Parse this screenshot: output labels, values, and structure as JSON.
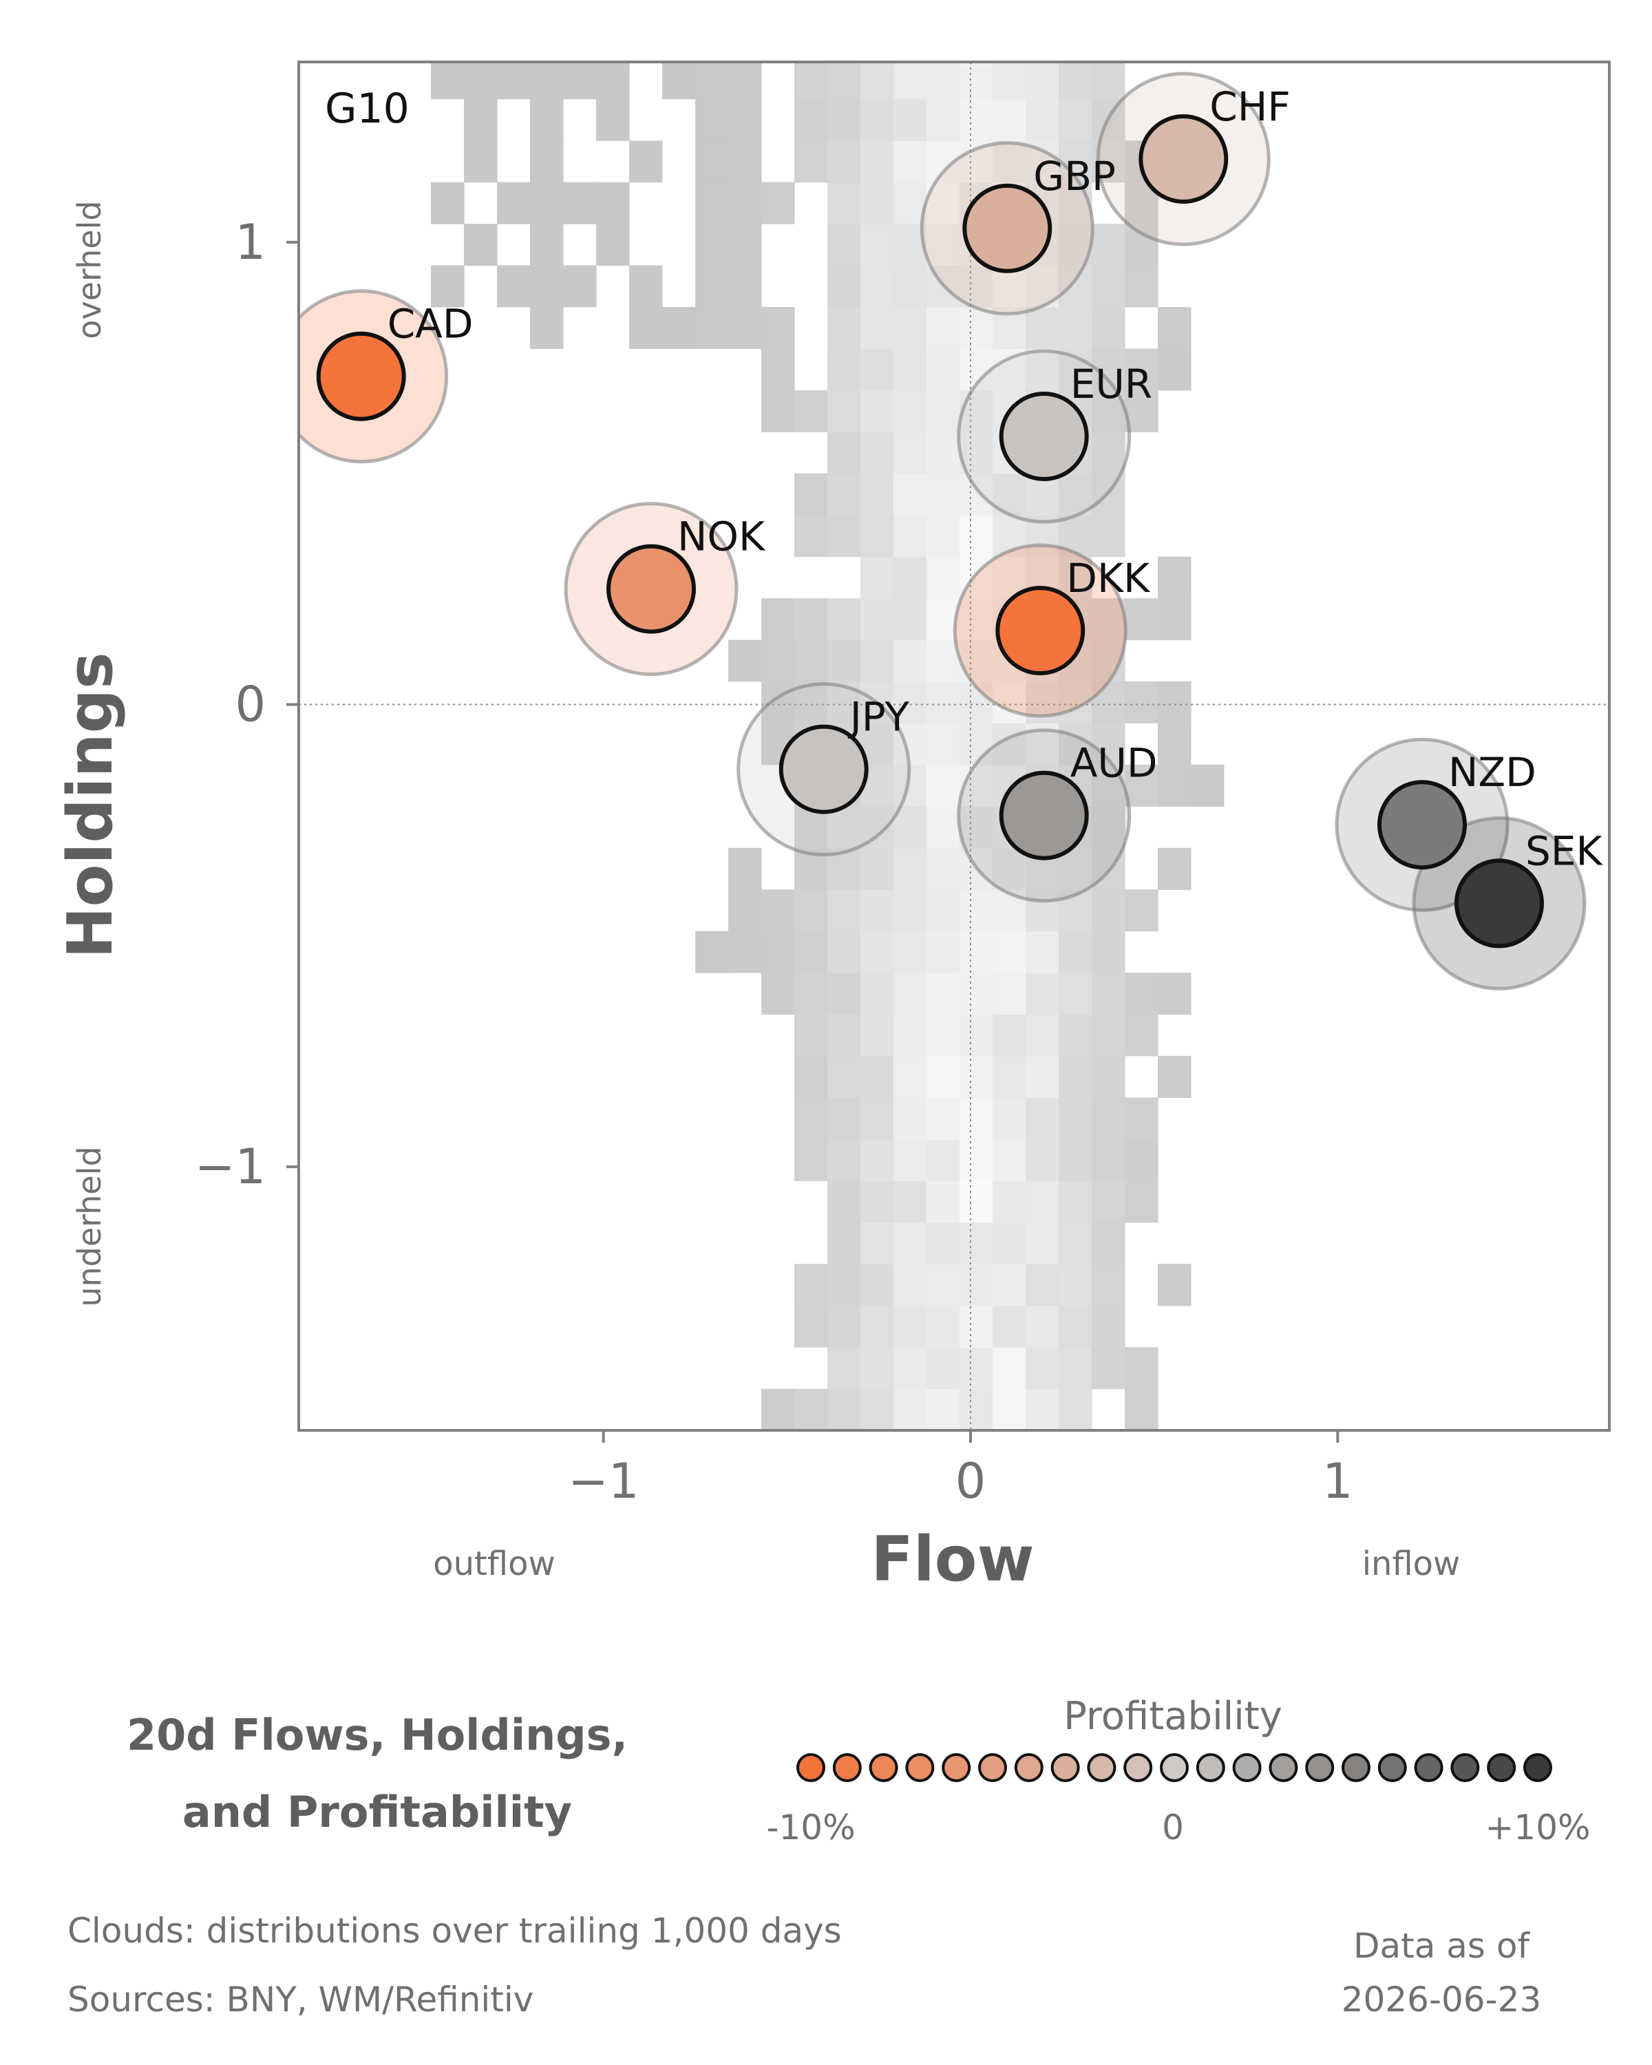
{
  "colors": {
    "negative": "#f4743b",
    "neutral": "#cfcac6",
    "positive": "#3a3a3a",
    "text_dark": "#5f5f5f",
    "text_mid": "#707070",
    "cloud": "#d4d4d4"
  },
  "chart_data": {
    "type": "scatter",
    "panel_label": "G10",
    "title_lines": [
      "20d Flows, Holdings,",
      "and Profitability"
    ],
    "xlabel": "Flow",
    "ylabel": "Holdings",
    "x_ends": {
      "left": "outflow",
      "right": "inflow"
    },
    "y_ends": {
      "top": "overheld",
      "bottom": "underheld"
    },
    "xlim": [
      -1.83,
      1.74
    ],
    "ylim": [
      -1.57,
      1.39
    ],
    "xticks": [
      -1,
      0,
      1
    ],
    "xtick_labels": [
      "−1",
      "0",
      "1"
    ],
    "yticks": [
      -1,
      0,
      1
    ],
    "ytick_labels": [
      "−1",
      "0",
      "1"
    ],
    "reference_lines": {
      "x": 0,
      "y": 0
    },
    "legend": {
      "title": "Profitability",
      "min_label": "-10%",
      "mid_label": "0",
      "max_label": "+10%",
      "range": [
        -10,
        10
      ],
      "steps": 21
    },
    "points": [
      {
        "label": "CAD",
        "flow": -1.66,
        "holdings": 0.71,
        "profitability": -10.0
      },
      {
        "label": "GBP",
        "flow": 0.1,
        "holdings": 1.03,
        "profitability": -3.0
      },
      {
        "label": "CHF",
        "flow": 0.58,
        "holdings": 1.18,
        "profitability": -2.0
      },
      {
        "label": "EUR",
        "flow": 0.2,
        "holdings": 0.58,
        "profitability": 0.5
      },
      {
        "label": "NOK",
        "flow": -0.87,
        "holdings": 0.25,
        "profitability": -6.5
      },
      {
        "label": "DKK",
        "flow": 0.19,
        "holdings": 0.16,
        "profitability": -10.0
      },
      {
        "label": "JPY",
        "flow": -0.4,
        "holdings": -0.14,
        "profitability": 0.5
      },
      {
        "label": "AUD",
        "flow": 0.2,
        "holdings": -0.24,
        "profitability": 3.5
      },
      {
        "label": "NZD",
        "flow": 1.23,
        "holdings": -0.26,
        "profitability": 5.5
      },
      {
        "label": "SEK",
        "flow": 1.44,
        "holdings": -0.43,
        "profitability": 10.0
      }
    ]
  },
  "footer": {
    "clouds_note": "Clouds:  distributions over trailing 1,000 days",
    "sources": "Sources:  BNY, WM/Refinitiv",
    "asof_label": "Data as of",
    "asof_date": "2026-06-23"
  }
}
